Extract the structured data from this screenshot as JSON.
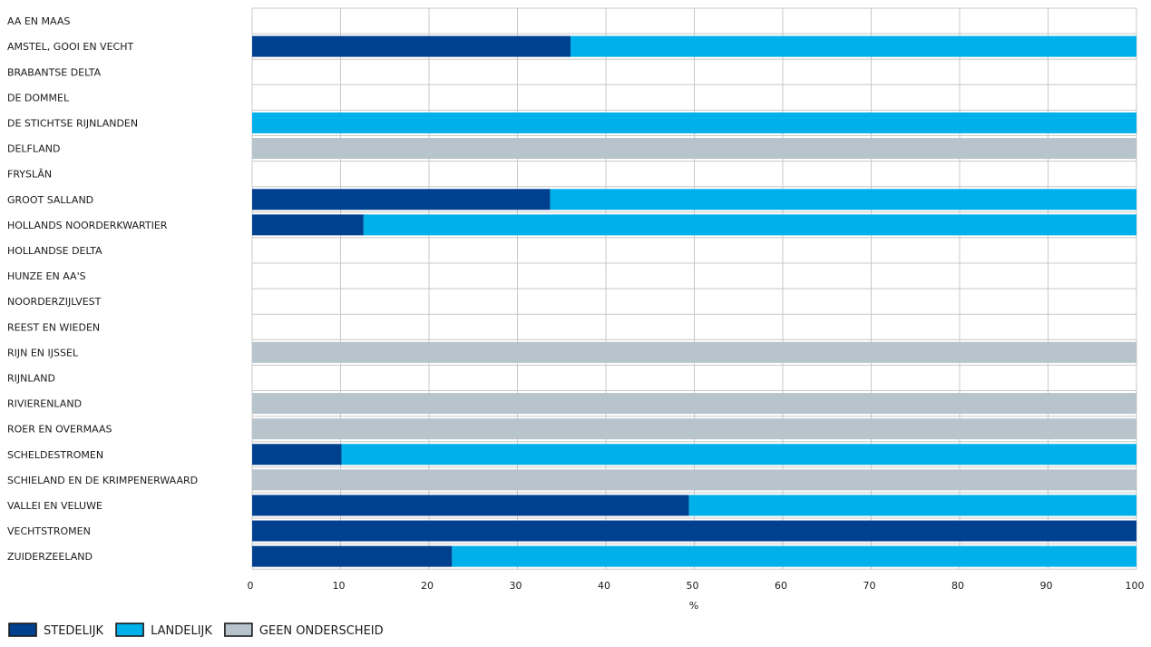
{
  "chart_data": {
    "type": "bar",
    "orientation": "horizontal",
    "stacked": true,
    "title": "",
    "xlabel": "%",
    "ylabel": "",
    "xlim": [
      0,
      100
    ],
    "x_ticks": [
      "0",
      "10",
      "20",
      "30",
      "40",
      "50",
      "60",
      "70",
      "80",
      "90",
      "100"
    ],
    "grid": true,
    "legend_position": "bottom-left",
    "categories": [
      "AA EN MAAS",
      "AMSTEL, GOOI EN VECHT",
      "BRABANTSE DELTA",
      "DE DOMMEL",
      "DE STICHTSE RIJNLANDEN",
      "DELFLAND",
      "FRYSLÂN",
      "GROOT SALLAND",
      "HOLLANDS NOORDERKWARTIER",
      "HOLLANDSE DELTA",
      "HUNZE EN AA'S",
      "NOORDERZIJLVEST",
      "REEST EN WIEDEN",
      "RIJN EN IJSSEL",
      "RIJNLAND",
      "RIVIERENLAND",
      "ROER EN OVERMAAS",
      "SCHELDESTROMEN",
      "SCHIELAND EN DE KRIMPENERWAARD",
      "VALLEI EN VELUWE",
      "VECHTSTROMEN",
      "ZUIDERZEELAND"
    ],
    "series": [
      {
        "name": "STEDELIJK",
        "color": "#00418f",
        "values": [
          0,
          36,
          0,
          0,
          0,
          0,
          0,
          33.7,
          12.6,
          0,
          0,
          0,
          0,
          0,
          0,
          0,
          0,
          10.1,
          0,
          49.4,
          100,
          22.6
        ]
      },
      {
        "name": "LANDELIJK",
        "color": "#00b0eb",
        "values": [
          0,
          64,
          0,
          0,
          100,
          0,
          0,
          66.3,
          87.4,
          0,
          0,
          0,
          0,
          0,
          0,
          0,
          0,
          89.9,
          0,
          50.6,
          0,
          77.4
        ]
      },
      {
        "name": "GEEN ONDERSCHEID",
        "color": "#b8c4cc",
        "values": [
          0,
          0,
          0,
          0,
          0,
          100,
          0,
          0,
          0,
          0,
          0,
          0,
          0,
          100,
          0,
          100,
          100,
          0,
          100,
          0,
          0,
          0
        ]
      }
    ]
  }
}
